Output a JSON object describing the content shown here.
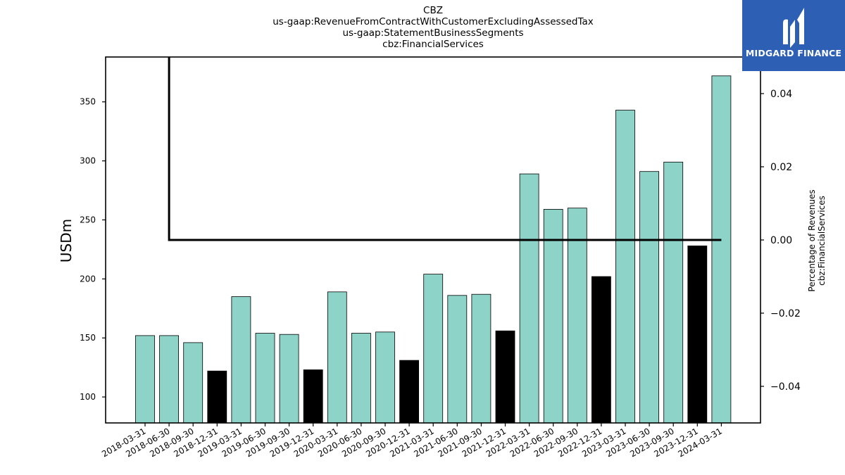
{
  "title_lines": [
    "CBZ",
    "us-gaap:RevenueFromContractWithCustomerExcludingAssessedTax",
    "us-gaap:StatementBusinessSegments",
    "cbz:FinancialServices"
  ],
  "logo": {
    "text": "MIDGARD FINANCE",
    "background": "#2d5fb4"
  },
  "chart_data": {
    "type": "bar",
    "ylabel": "USDm",
    "y2label_lines": [
      "Percentage of Revenues",
      "cbz:FinancialServices"
    ],
    "ylim": [
      78,
      388
    ],
    "y2lim": [
      -0.05,
      0.05
    ],
    "yticks": [
      100,
      150,
      200,
      250,
      300,
      350
    ],
    "y2ticks": [
      -0.04,
      -0.02,
      0.0,
      0.02,
      0.04
    ],
    "y2tick_labels": [
      "−0.04",
      "−0.02",
      "0.00",
      "0.02",
      "0.04"
    ],
    "grid": false,
    "colors": {
      "quarter": "#8dd3c7",
      "year_end": "#000000",
      "line": "#000000"
    },
    "categories": [
      "2018-03-31",
      "2018-06-30",
      "2018-09-30",
      "2018-12-31",
      "2019-03-31",
      "2019-06-30",
      "2019-09-30",
      "2019-12-31",
      "2020-03-31",
      "2020-06-30",
      "2020-09-30",
      "2020-12-31",
      "2021-03-31",
      "2021-06-30",
      "2021-09-30",
      "2021-12-31",
      "2022-03-31",
      "2022-06-30",
      "2022-09-30",
      "2022-12-31",
      "2023-03-31",
      "2023-06-30",
      "2023-09-30",
      "2023-12-31",
      "2024-03-31"
    ],
    "values": [
      152,
      152,
      146,
      122,
      185,
      154,
      153,
      123,
      189,
      154,
      155,
      131,
      204,
      186,
      187,
      156,
      289,
      259,
      260,
      202,
      343,
      291,
      299,
      228,
      372
    ],
    "year_end": [
      false,
      false,
      false,
      true,
      false,
      false,
      false,
      true,
      false,
      false,
      false,
      true,
      false,
      false,
      false,
      true,
      false,
      false,
      false,
      true,
      false,
      false,
      false,
      true,
      false
    ],
    "percent_line": {
      "x_start": "2018-06-30",
      "x_end": "2024-03-31",
      "value": 0.0,
      "vertical_from_top_at": "2018-06-30"
    }
  }
}
